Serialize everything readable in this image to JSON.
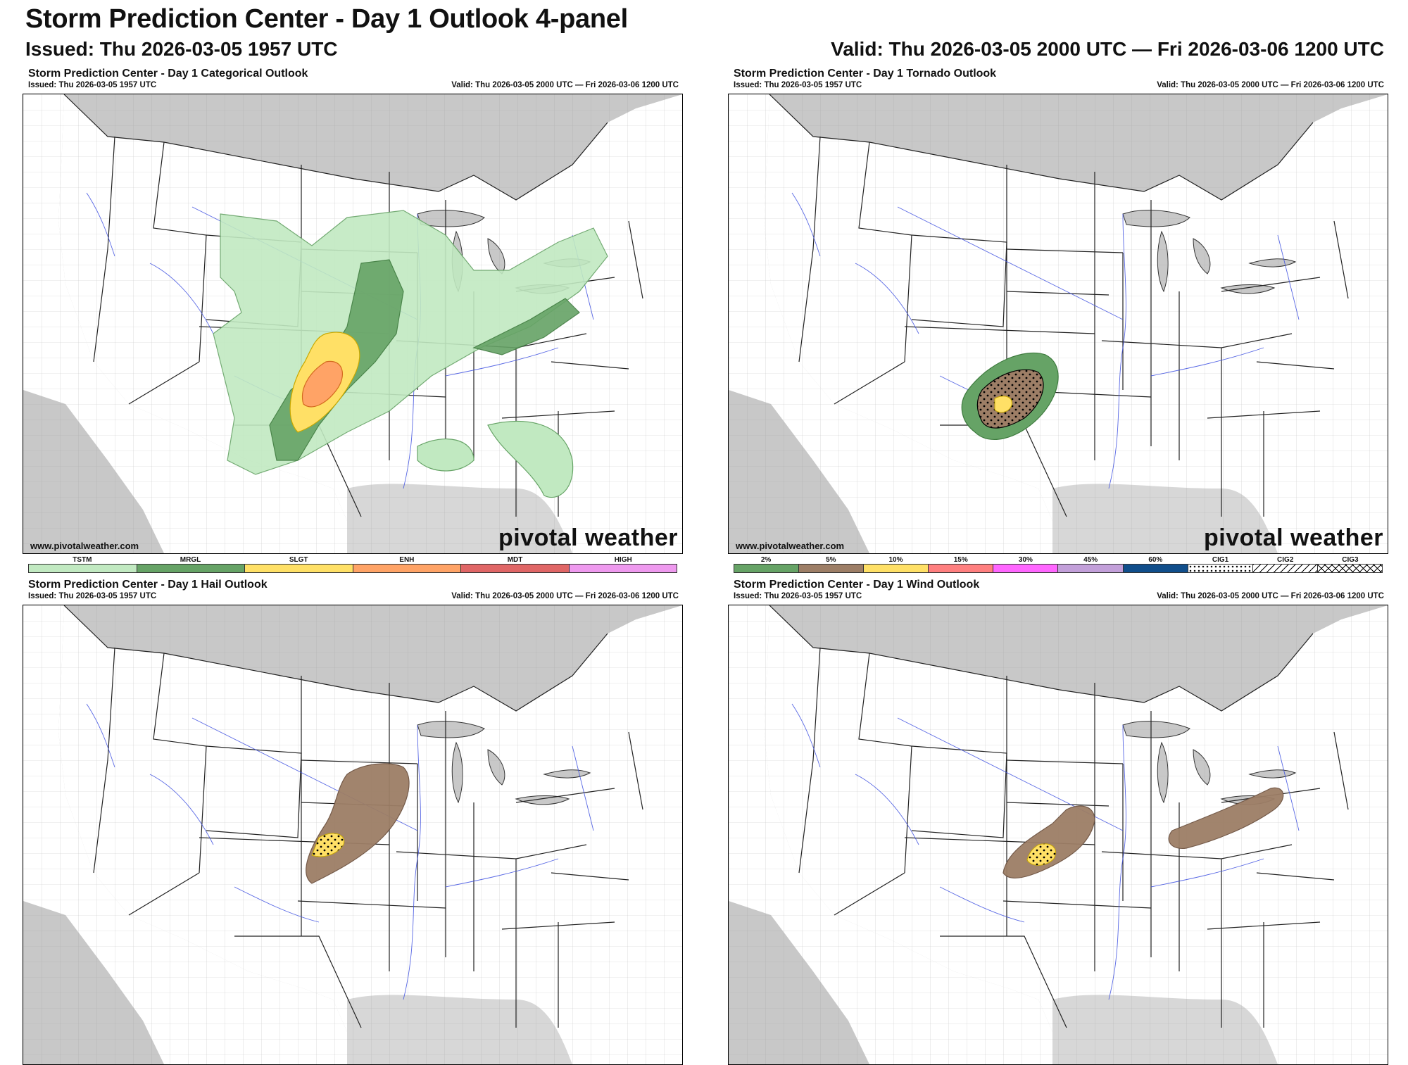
{
  "header": {
    "title": "Storm Prediction Center - Day 1 Outlook 4-panel",
    "issued": "Issued: Thu 2026-03-05 1957 UTC",
    "valid": "Valid: Thu 2026-03-05 2000 UTC — Fri 2026-03-06 1200 UTC"
  },
  "panels": [
    {
      "title": "Storm Prediction Center - Day 1 Categorical Outlook",
      "issued": "Issued: Thu 2026-03-05 1957 UTC",
      "valid": "Valid: Thu 2026-03-05 2000 UTC — Fri 2026-03-06 1200 UTC",
      "credit": "www.pivotalweather.com",
      "logo": "pivotal weather",
      "legend": [
        {
          "label": "TSTM",
          "color": "#c1e9c1"
        },
        {
          "label": "MRGL",
          "color": "#66a366"
        },
        {
          "label": "SLGT",
          "color": "#ffe066"
        },
        {
          "label": "ENH",
          "color": "#ffa366"
        },
        {
          "label": "MDT",
          "color": "#e06666"
        },
        {
          "label": "HIGH",
          "color": "#ee99ee"
        }
      ]
    },
    {
      "title": "Storm Prediction Center - Day 1 Tornado Outlook",
      "issued": "Issued: Thu 2026-03-05 1957 UTC",
      "valid": "Valid: Thu 2026-03-05 2000 UTC — Fri 2026-03-06 1200 UTC",
      "credit": "www.pivotalweather.com",
      "logo": "pivotal weather",
      "legend": [
        {
          "label": "2%",
          "color": "#66a366"
        },
        {
          "label": "5%",
          "color": "#9d7e66"
        },
        {
          "label": "10%",
          "color": "#ffe066"
        },
        {
          "label": "15%",
          "color": "#ff7f7f"
        },
        {
          "label": "30%",
          "color": "#ff66ff"
        },
        {
          "label": "45%",
          "color": "#c29fd9"
        },
        {
          "label": "60%",
          "color": "#104e8b"
        },
        {
          "label": "CIG1",
          "color": "#ffffff"
        },
        {
          "label": "CIG2",
          "color": "#ffffff"
        },
        {
          "label": "CIG3",
          "color": "#ffffff"
        }
      ]
    },
    {
      "title": "Storm Prediction Center - Day 1 Hail Outlook",
      "issued": "Issued: Thu 2026-03-05 1957 UTC",
      "valid": "Valid: Thu 2026-03-05 2000 UTC — Fri 2026-03-06 1200 UTC"
    },
    {
      "title": "Storm Prediction Center - Day 1 Wind Outlook",
      "issued": "Issued: Thu 2026-03-05 1957 UTC",
      "valid": "Valid: Thu 2026-03-05 2000 UTC — Fri 2026-03-06 1200 UTC"
    }
  ]
}
